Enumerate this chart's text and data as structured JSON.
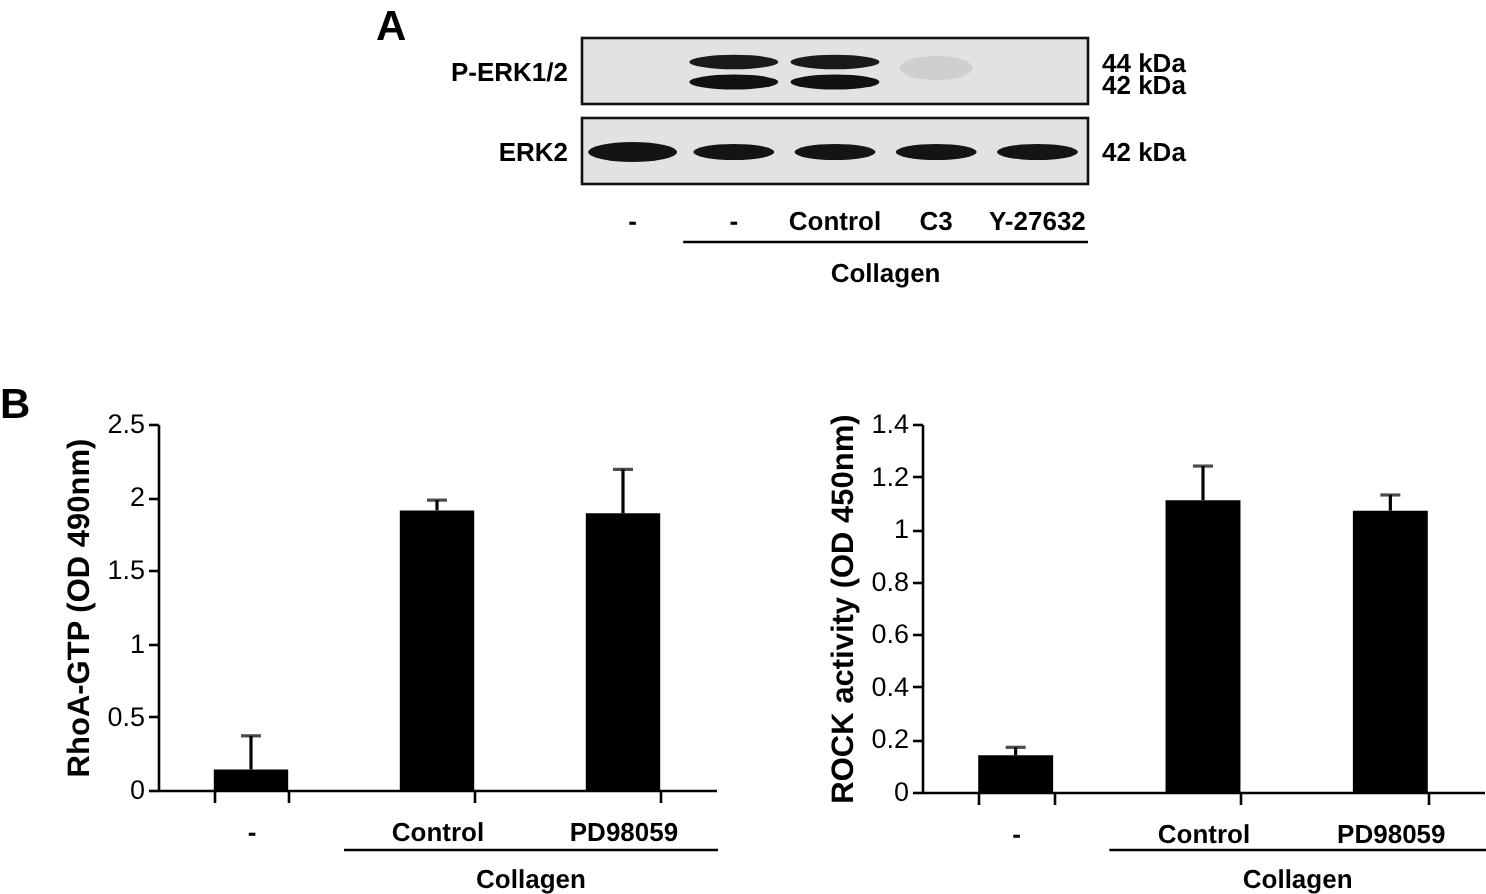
{
  "chart_data": [
    {
      "type": "other",
      "title": "A",
      "categories": [
        "-",
        "-",
        "Control",
        "C3",
        "Y-27632"
      ],
      "y_categories": [
        "P-ERK1/2",
        "ERK2"
      ],
      "annotations": [
        "44 kDa",
        "42 kDa",
        "42 kDa",
        "Collagen"
      ]
    },
    {
      "type": "bar",
      "title": "B",
      "ylabel": "RhoA-GTP (OD 490nm)",
      "categories": [
        "-",
        "Control",
        "PD98059"
      ],
      "values": [
        0.14,
        1.91,
        1.89
      ],
      "errors": [
        [
          0.14,
          0.37
        ],
        [
          1.91,
          1.98
        ],
        [
          1.89,
          2.19
        ]
      ],
      "color": "#000000",
      "ylim": [
        0,
        2.5
      ],
      "yticks": [
        0,
        0.5,
        1,
        1.5,
        2,
        2.5
      ],
      "annotations": [
        "Collagen"
      ]
    },
    {
      "type": "bar",
      "ylabel": "ROCK activity (OD 450nm)",
      "categories": [
        "-",
        "Control",
        "PD98059"
      ],
      "values": [
        0.14,
        1.11,
        1.07
      ],
      "errors": [
        [
          0.14,
          0.17
        ],
        [
          1.11,
          1.24
        ],
        [
          1.07,
          1.13
        ]
      ],
      "color": "#000000",
      "ylim": [
        0,
        1.4
      ],
      "yticks": [
        0,
        0.2,
        0.4,
        0.6,
        0.8,
        1,
        1.2,
        1.4
      ],
      "annotations": [
        "Collagen"
      ]
    }
  ]
}
